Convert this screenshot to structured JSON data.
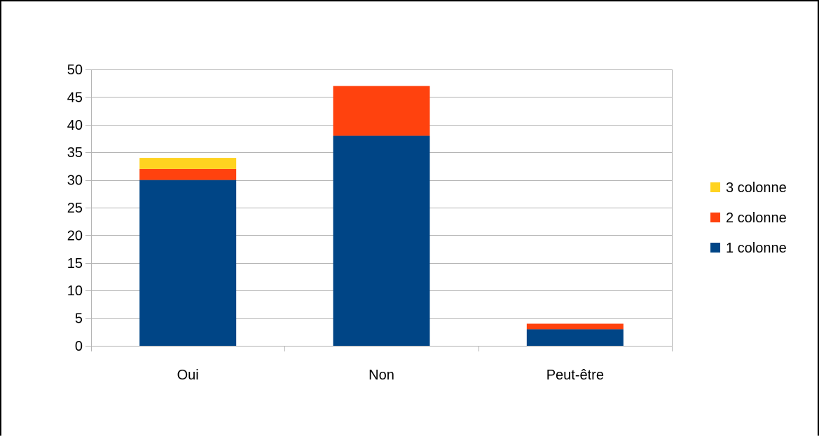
{
  "chart_data": {
    "type": "bar",
    "stacked": true,
    "categories": [
      "Oui",
      "Non",
      "Peut-être"
    ],
    "series": [
      {
        "name": "1 colonne",
        "color": "#004586",
        "values": [
          30,
          38,
          3
        ]
      },
      {
        "name": "2 colonne",
        "color": "#ff420e",
        "values": [
          2,
          9,
          1
        ]
      },
      {
        "name": "3 colonne",
        "color": "#ffd320",
        "values": [
          2,
          0,
          0
        ]
      }
    ],
    "title": "",
    "xlabel": "",
    "ylabel": "",
    "ylim": [
      0,
      50
    ],
    "yticks": [
      0,
      5,
      10,
      15,
      20,
      25,
      30,
      35,
      40,
      45,
      50
    ],
    "grid": true,
    "legend_position": "right",
    "legend_order": [
      "3 colonne",
      "2 colonne",
      "1 colonne"
    ]
  }
}
